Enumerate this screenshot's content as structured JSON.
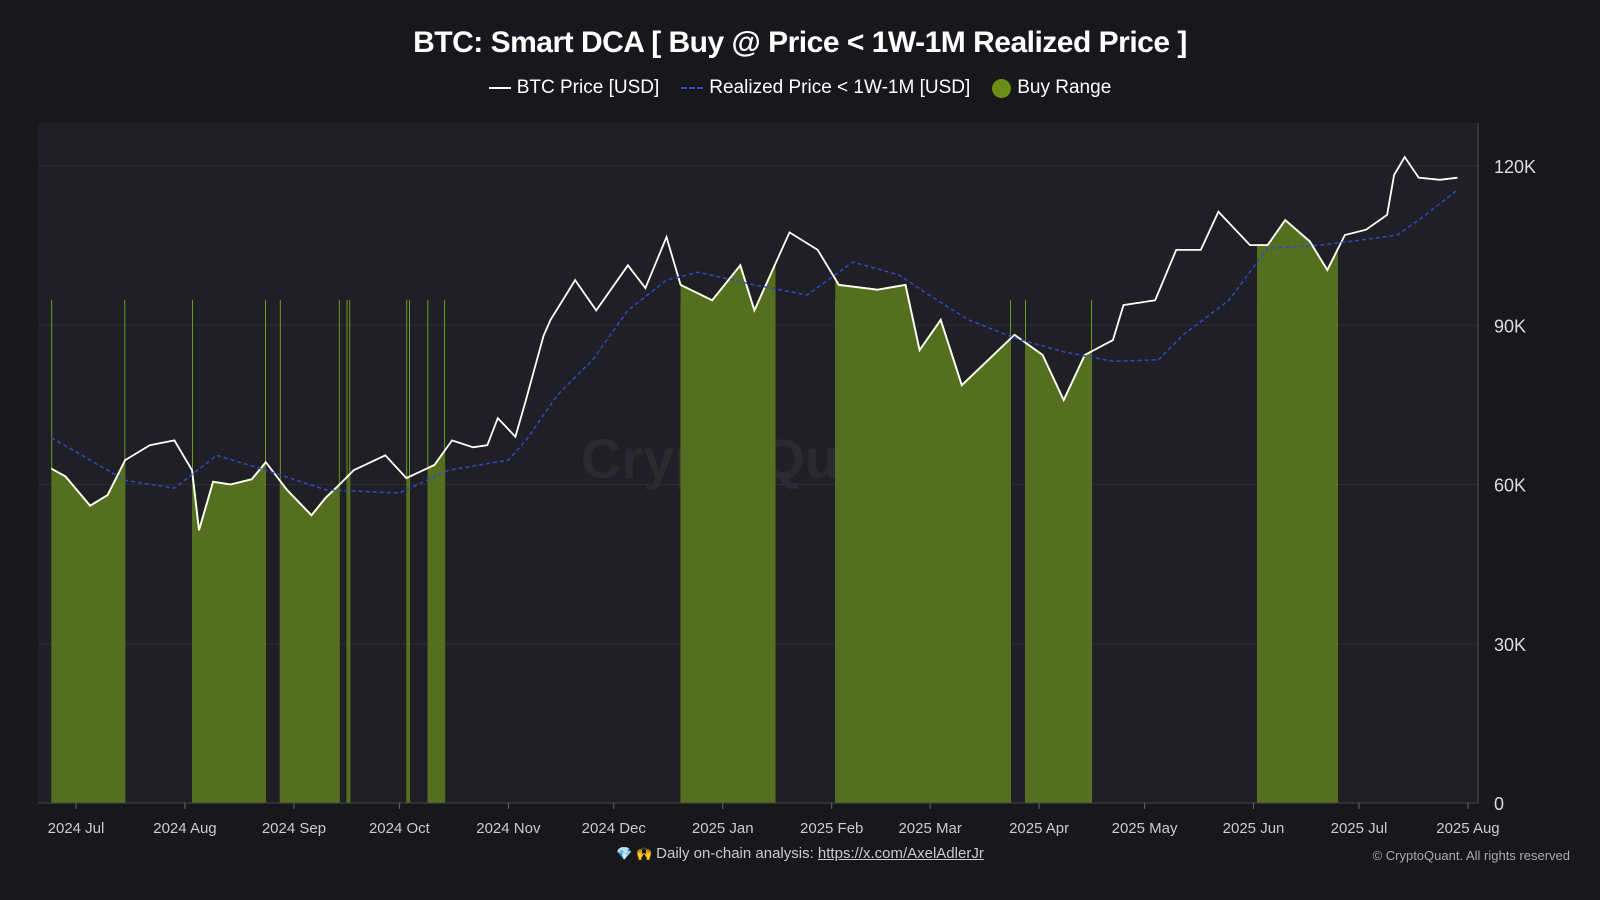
{
  "title": "BTC: Smart DCA [ Buy @ Price < 1W-1M Realized Price ]",
  "legend": {
    "price": "BTC Price [USD]",
    "realized": "Realized Price < 1W-1M [USD]",
    "buy": "Buy Range"
  },
  "footer": {
    "text": "Daily on-chain analysis: ",
    "link": "https://x.com/AxelAdlerJr",
    "copyright": "© CryptoQuant. All rights reserved",
    "icons": "💎 🙌"
  },
  "watermark": "CryptoQuant",
  "chart_data": {
    "type": "line",
    "title": "BTC: Smart DCA [ Buy @ Price < 1W-1M Realized Price ]",
    "ylim": [
      0,
      127000
    ],
    "y_ticks": [
      {
        "v": 0,
        "label": "0"
      },
      {
        "v": 30000,
        "label": "30K"
      },
      {
        "v": 60000,
        "label": "60K"
      },
      {
        "v": 90000,
        "label": "90K"
      },
      {
        "v": 120000,
        "label": "120K"
      }
    ],
    "x_ticks": [
      {
        "d": "2024-07-01",
        "label": "2024 Jul"
      },
      {
        "d": "2024-08-01",
        "label": "2024 Aug"
      },
      {
        "d": "2024-09-01",
        "label": "2024 Sep"
      },
      {
        "d": "2024-10-01",
        "label": "2024 Oct"
      },
      {
        "d": "2024-11-01",
        "label": "2024 Nov"
      },
      {
        "d": "2024-12-01",
        "label": "2024 Dec"
      },
      {
        "d": "2025-01-01",
        "label": "2025 Jan"
      },
      {
        "d": "2025-02-01",
        "label": "2025 Feb"
      },
      {
        "d": "2025-03-01",
        "label": "2025 Mar"
      },
      {
        "d": "2025-04-01",
        "label": "2025 Apr"
      },
      {
        "d": "2025-05-01",
        "label": "2025 May"
      },
      {
        "d": "2025-06-01",
        "label": "2025 Jun"
      },
      {
        "d": "2025-07-01",
        "label": "2025 Jul"
      },
      {
        "d": "2025-08-01",
        "label": "2025 Aug"
      }
    ],
    "legend_position": "top-center",
    "series": [
      {
        "name": "BTC Price [USD]",
        "color": "#ffffff",
        "points": [
          [
            "2024-06-24",
            63000
          ],
          [
            "2024-06-28",
            61500
          ],
          [
            "2024-07-05",
            56000
          ],
          [
            "2024-07-10",
            58000
          ],
          [
            "2024-07-15",
            64600
          ],
          [
            "2024-07-22",
            67400
          ],
          [
            "2024-07-29",
            68300
          ],
          [
            "2024-08-03",
            62700
          ],
          [
            "2024-08-05",
            51400
          ],
          [
            "2024-08-09",
            60500
          ],
          [
            "2024-08-14",
            60000
          ],
          [
            "2024-08-20",
            61000
          ],
          [
            "2024-08-24",
            64200
          ],
          [
            "2024-08-30",
            59000
          ],
          [
            "2024-09-06",
            54200
          ],
          [
            "2024-09-10",
            57500
          ],
          [
            "2024-09-14",
            60000
          ],
          [
            "2024-09-18",
            62700
          ],
          [
            "2024-09-27",
            65500
          ],
          [
            "2024-10-03",
            61200
          ],
          [
            "2024-10-11",
            63700
          ],
          [
            "2024-10-16",
            68300
          ],
          [
            "2024-10-22",
            67000
          ],
          [
            "2024-10-26",
            67400
          ],
          [
            "2024-10-29",
            72500
          ],
          [
            "2024-11-03",
            69000
          ],
          [
            "2024-11-06",
            75900
          ],
          [
            "2024-11-11",
            88000
          ],
          [
            "2024-11-13",
            91000
          ],
          [
            "2024-11-20",
            98500
          ],
          [
            "2024-11-26",
            92800
          ],
          [
            "2024-12-05",
            101300
          ],
          [
            "2024-12-10",
            97000
          ],
          [
            "2024-12-16",
            106600
          ],
          [
            "2024-12-20",
            97600
          ],
          [
            "2024-12-29",
            94700
          ],
          [
            "2025-01-06",
            101300
          ],
          [
            "2025-01-10",
            92800
          ],
          [
            "2025-01-20",
            107500
          ],
          [
            "2025-01-28",
            104200
          ],
          [
            "2025-02-03",
            97600
          ],
          [
            "2025-02-14",
            96700
          ],
          [
            "2025-02-22",
            97600
          ],
          [
            "2025-02-26",
            85300
          ],
          [
            "2025-03-04",
            91000
          ],
          [
            "2025-03-10",
            78700
          ],
          [
            "2025-03-19",
            84400
          ],
          [
            "2025-03-25",
            88200
          ],
          [
            "2025-04-02",
            84400
          ],
          [
            "2025-04-08",
            75900
          ],
          [
            "2025-04-14",
            84400
          ],
          [
            "2025-04-22",
            87200
          ],
          [
            "2025-04-25",
            93800
          ],
          [
            "2025-05-04",
            94700
          ],
          [
            "2025-05-10",
            104200
          ],
          [
            "2025-05-17",
            104200
          ],
          [
            "2025-05-22",
            111400
          ],
          [
            "2025-05-31",
            105100
          ],
          [
            "2025-06-05",
            105100
          ],
          [
            "2025-06-10",
            109800
          ],
          [
            "2025-06-17",
            105800
          ],
          [
            "2025-06-22",
            100400
          ],
          [
            "2025-06-27",
            107000
          ],
          [
            "2025-07-03",
            108000
          ],
          [
            "2025-07-09",
            110800
          ],
          [
            "2025-07-11",
            118300
          ],
          [
            "2025-07-14",
            121700
          ],
          [
            "2025-07-18",
            117800
          ],
          [
            "2025-07-24",
            117400
          ],
          [
            "2025-07-29",
            117800
          ]
        ]
      },
      {
        "name": "Realized Price < 1W-1M [USD]",
        "color": "#2f4bc7",
        "dashed": true,
        "points": [
          [
            "2024-06-24",
            68800
          ],
          [
            "2024-07-15",
            60800
          ],
          [
            "2024-07-29",
            59300
          ],
          [
            "2024-08-10",
            65500
          ],
          [
            "2024-08-24",
            62700
          ],
          [
            "2024-09-10",
            59000
          ],
          [
            "2024-10-01",
            58400
          ],
          [
            "2024-10-15",
            62700
          ],
          [
            "2024-11-01",
            64600
          ],
          [
            "2024-11-06",
            68300
          ],
          [
            "2024-11-15",
            76900
          ],
          [
            "2024-11-25",
            83500
          ],
          [
            "2024-12-05",
            92800
          ],
          [
            "2024-12-16",
            98500
          ],
          [
            "2024-12-25",
            100000
          ],
          [
            "2025-01-10",
            97600
          ],
          [
            "2025-01-25",
            95700
          ],
          [
            "2025-02-07",
            101900
          ],
          [
            "2025-02-20",
            99500
          ],
          [
            "2025-03-03",
            94700
          ],
          [
            "2025-03-12",
            91000
          ],
          [
            "2025-03-25",
            87600
          ],
          [
            "2025-04-08",
            85000
          ],
          [
            "2025-04-22",
            83200
          ],
          [
            "2025-05-05",
            83500
          ],
          [
            "2025-05-12",
            88200
          ],
          [
            "2025-05-25",
            94700
          ],
          [
            "2025-06-05",
            104500
          ],
          [
            "2025-06-20",
            105100
          ],
          [
            "2025-07-01",
            106000
          ],
          [
            "2025-07-12",
            107000
          ],
          [
            "2025-07-20",
            110800
          ],
          [
            "2025-07-29",
            115500
          ]
        ]
      }
    ],
    "buy_ranges": {
      "name": "Buy Range",
      "color": "#6b8e16",
      "intervals": [
        [
          "2024-06-24",
          "2024-07-15"
        ],
        [
          "2024-08-03",
          "2024-08-24"
        ],
        [
          "2024-08-28",
          "2024-09-14"
        ],
        [
          "2024-09-16",
          "2024-09-17"
        ],
        [
          "2024-10-03",
          "2024-10-04"
        ],
        [
          "2024-10-09",
          "2024-10-14"
        ],
        [
          "2024-12-20",
          "2025-01-16"
        ],
        [
          "2025-02-02",
          "2025-03-24"
        ],
        [
          "2025-03-28",
          "2025-04-16"
        ],
        [
          "2025-06-02",
          "2025-06-25"
        ]
      ]
    }
  }
}
